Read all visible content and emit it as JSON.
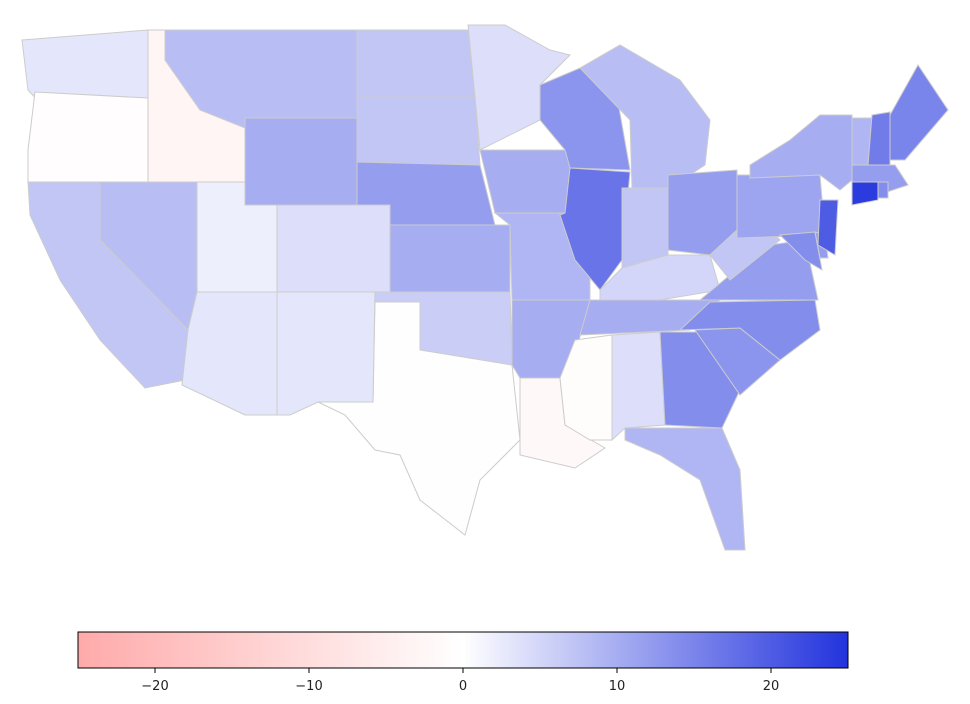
{
  "chart_data": {
    "type": "choropleth",
    "values": [
      3,
      -0.5,
      -3,
      8,
      10,
      7,
      7,
      12,
      10,
      6,
      -0.2,
      4,
      2,
      8,
      7,
      3,
      3,
      4,
      10,
      9,
      10,
      -2,
      13,
      17,
      8,
      7,
      12,
      5,
      10,
      -1,
      4,
      14,
      9,
      13,
      14,
      12,
      7,
      11,
      14,
      12,
      20,
      10,
      9,
      16,
      15,
      12,
      24,
      14
    ],
    "colormap": [
      "#ffaaaa",
      "#ffffff",
      "#2233dd"
    ],
    "border_color": "#cccccc",
    "xlim": [
      -25,
      25
    ],
    "xticks": [
      {
        "value": -20,
        "label": "−20"
      },
      {
        "value": -10,
        "label": "−10"
      },
      0,
      10,
      20
    ]
  }
}
